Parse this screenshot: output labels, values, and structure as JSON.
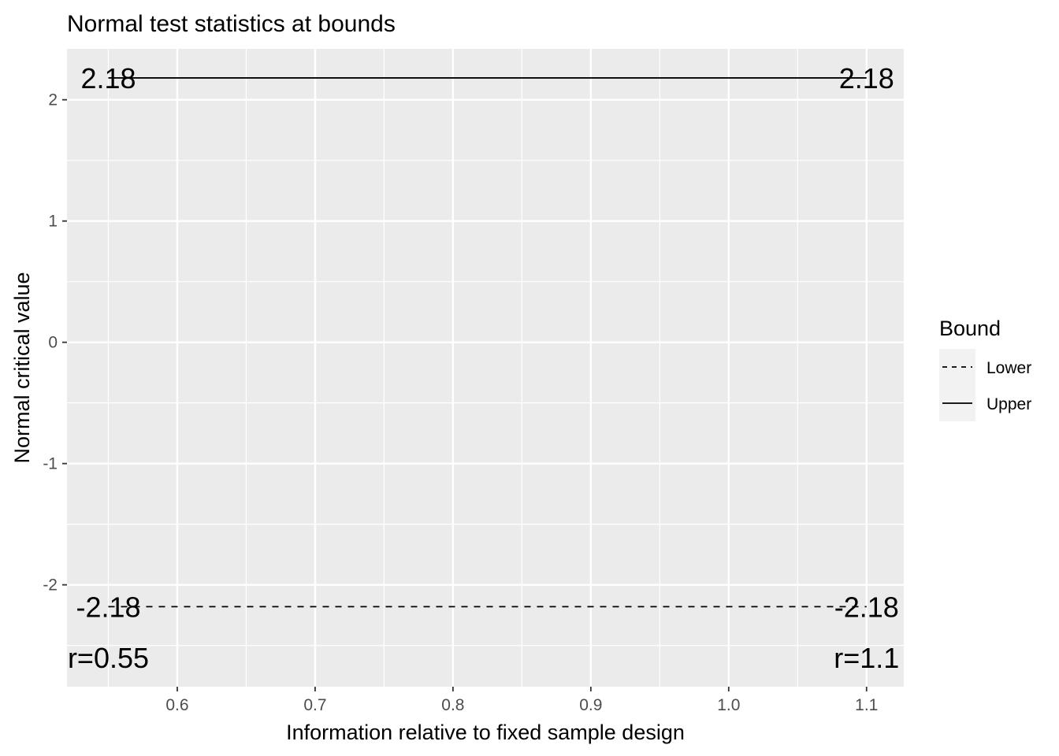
{
  "chart_data": {
    "type": "line",
    "title": "Normal test statistics at bounds",
    "xlabel": "Information relative to fixed sample design",
    "ylabel": "Normal critical value",
    "xlim": [
      0.52,
      1.127
    ],
    "ylim": [
      -2.84,
      2.42
    ],
    "x_ticks": [
      0.6,
      0.7,
      0.8,
      0.9,
      1.0,
      1.1
    ],
    "x_tick_labels": [
      "0.6",
      "0.7",
      "0.8",
      "0.9",
      "1.0",
      "1.1"
    ],
    "y_ticks": [
      -2,
      -1,
      0,
      1,
      2
    ],
    "y_tick_labels": [
      "-2",
      "-1",
      "0",
      "1",
      "2"
    ],
    "grid": true,
    "panel_background": "#ebebeb",
    "grid_color": "#ffffff",
    "legend": {
      "title": "Bound",
      "placement": "right",
      "entries": [
        {
          "label": "Lower",
          "linetype": "dashed"
        },
        {
          "label": "Upper",
          "linetype": "solid"
        }
      ]
    },
    "series": [
      {
        "name": "Lower",
        "linetype": "dashed",
        "color": "#000000",
        "x": [
          0.55,
          1.1
        ],
        "y": [
          -2.18,
          -2.18
        ]
      },
      {
        "name": "Upper",
        "linetype": "solid",
        "color": "#000000",
        "x": [
          0.55,
          1.1
        ],
        "y": [
          2.18,
          2.18
        ]
      }
    ],
    "annotations": [
      {
        "text": "2.18",
        "x": 0.55,
        "y": 2.18
      },
      {
        "text": "2.18",
        "x": 1.1,
        "y": 2.18
      },
      {
        "text": "-2.18",
        "x": 0.55,
        "y": -2.18
      },
      {
        "text": "-2.18",
        "x": 1.1,
        "y": -2.18
      },
      {
        "text": "r=0.55",
        "x": 0.55,
        "y": -2.6
      },
      {
        "text": "r=1.1",
        "x": 1.1,
        "y": -2.6
      }
    ]
  }
}
